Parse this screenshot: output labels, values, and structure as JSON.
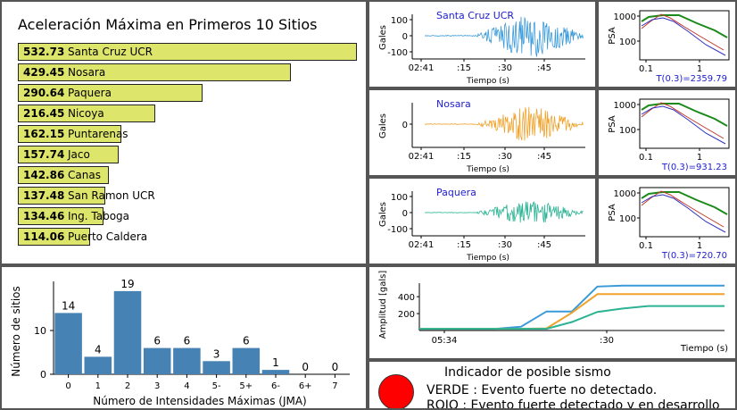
{
  "ranking": {
    "title": "Aceleración Máxima en Primeros 10 Sitios",
    "items": [
      {
        "value": "532.73",
        "name": "Santa Cruz UCR"
      },
      {
        "value": "429.45",
        "name": "Nosara"
      },
      {
        "value": "290.64",
        "name": "Paquera"
      },
      {
        "value": "216.45",
        "name": "Nicoya"
      },
      {
        "value": "162.15",
        "name": "Puntarenas"
      },
      {
        "value": "157.74",
        "name": "Jaco"
      },
      {
        "value": "142.86",
        "name": "Canas"
      },
      {
        "value": "137.48",
        "name": "San Ramon UCR"
      },
      {
        "value": "134.46",
        "name": "Ing. Taboga"
      },
      {
        "value": "114.06",
        "name": "Puerto Caldera"
      }
    ]
  },
  "waveforms": [
    {
      "station": "Santa Cruz UCR",
      "color": "#3a9ad9",
      "ylabel": "Gales",
      "xlabel": "Tiempo (s)",
      "xticks": [
        "02:41",
        ":15",
        ":30",
        ":45"
      ],
      "yticks": [
        "100",
        "0",
        "-100"
      ],
      "peak": 532.73
    },
    {
      "station": "Nosara",
      "color": "#f0a22b",
      "ylabel": "Gales",
      "xlabel": "Tiempo (s)",
      "xticks": [
        "02:41",
        ":15",
        ":30",
        ":45"
      ],
      "yticks": [
        "0"
      ],
      "peak": 429.45
    },
    {
      "station": "Paquera",
      "color": "#2bb394",
      "ylabel": "Gales",
      "xlabel": "Tiempo (s)",
      "xticks": [
        "02:41",
        ":15",
        ":30",
        ":45"
      ],
      "yticks": [
        "100",
        "0",
        "-100"
      ],
      "peak": 290.64
    }
  ],
  "psa": [
    {
      "ylabel": "PSA",
      "xticks": [
        "0.1",
        "1"
      ],
      "yticks": [
        "1000",
        "100"
      ],
      "label": "T(0.3)=2359.79"
    },
    {
      "ylabel": "PSA",
      "xticks": [
        "0.1",
        "1"
      ],
      "yticks": [
        "1000",
        "100"
      ],
      "label": "T(0.3)=931.23"
    },
    {
      "ylabel": "PSA",
      "xticks": [
        "0.1",
        "1"
      ],
      "yticks": [
        "1000",
        "100"
      ],
      "label": "T(0.3)=720.70"
    }
  ],
  "chart_data": [
    {
      "type": "bar",
      "categories": [
        "0",
        "1",
        "2",
        "3",
        "4",
        "5-",
        "5+",
        "6-",
        "6+",
        "7"
      ],
      "values": [
        14,
        4,
        19,
        6,
        6,
        3,
        6,
        1,
        0,
        0
      ],
      "xlabel": "Número de Intensidades Máximas (JMA)",
      "ylabel": "Número de sitios",
      "yticks": [
        0,
        10
      ],
      "ylim": [
        0,
        20
      ],
      "color": "#4682b4"
    },
    {
      "type": "line",
      "ylabel": "Amplitud [gals]",
      "xlabel": "Tiempo (s)",
      "xticks": [
        "05:34",
        ":30"
      ],
      "yticks": [
        200,
        400
      ],
      "ylim": [
        0,
        560
      ],
      "series": [
        {
          "color": "#3a9ad9",
          "values": [
            20,
            20,
            20,
            20,
            45,
            225,
            225,
            520,
            530,
            530,
            530,
            530,
            530
          ]
        },
        {
          "color": "#f0a22b",
          "values": [
            20,
            20,
            20,
            20,
            20,
            25,
            210,
            430,
            430,
            430,
            430,
            430,
            430
          ]
        },
        {
          "color": "#2bb394",
          "values": [
            20,
            20,
            20,
            20,
            20,
            20,
            100,
            220,
            260,
            290,
            290,
            290,
            290
          ]
        }
      ]
    }
  ],
  "indicator": {
    "title": "Indicador de posible sismo",
    "line1": "VERDE : Evento fuerte no detectado.",
    "line2": "ROJO : Evento fuerte detectado y en desarrollo",
    "color": "#ff0000"
  }
}
